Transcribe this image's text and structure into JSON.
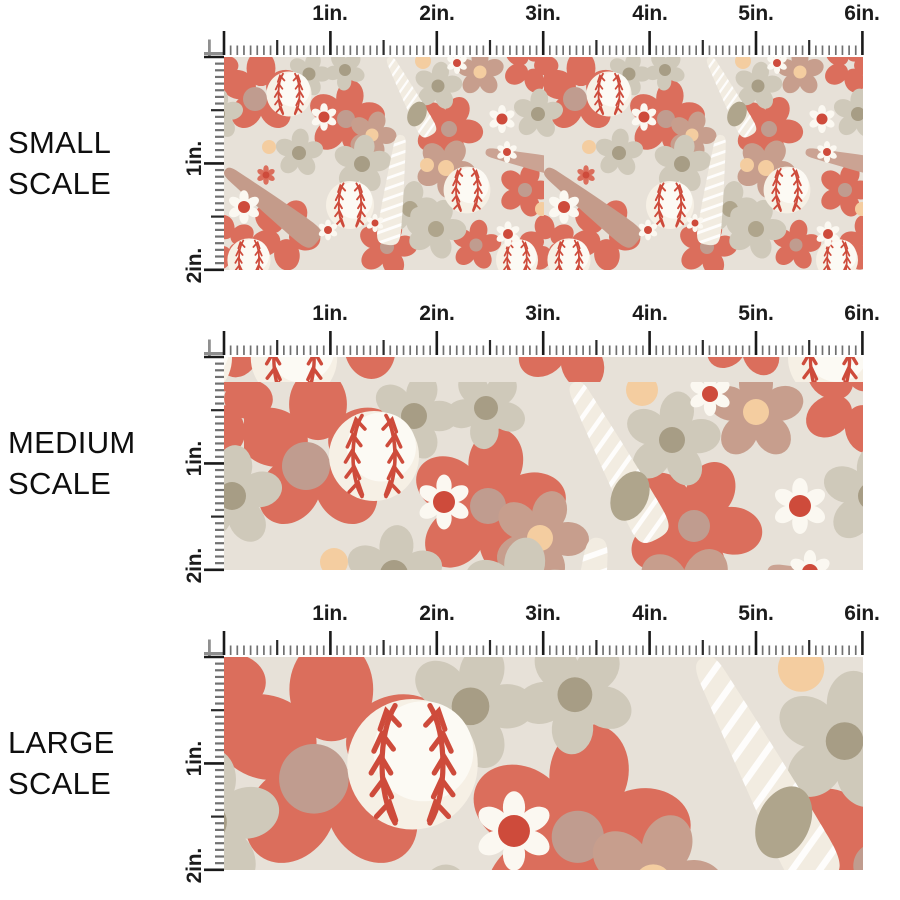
{
  "image_type": "fabric pattern scale comparison",
  "rows": [
    {
      "name": "small-scale",
      "label_line1": "SMALL",
      "label_line2": "SCALE"
    },
    {
      "name": "medium-scale",
      "label_line1": "MEDIUM",
      "label_line2": "SCALE"
    },
    {
      "name": "large-scale",
      "label_line1": "LARGE",
      "label_line2": "SCALE"
    }
  ],
  "ruler": {
    "horizontal_labels": [
      "1in.",
      "2in.",
      "3in.",
      "4in.",
      "5in.",
      "6in."
    ],
    "vertical_labels": [
      "1in.",
      "2in."
    ],
    "unit": "in.",
    "divisions_per_inch": 16
  },
  "pattern": {
    "description": "cream fabric with coral and beige florals, baseballs and baseball bats",
    "colors": {
      "fabric_background": "#E7E1D8",
      "coral": "#DB6E5C",
      "stitch_red": "#CE4B3B",
      "tan": "#C79E8D",
      "tan_center": "#C09C8F",
      "beige": "#CFC9BA",
      "beige_center": "#A79D85",
      "olive": "#AFA58C",
      "white": "#FBF8F1",
      "peach": "#F4CDA0",
      "cream_bat": "#F2ECE1",
      "bat_tan": "#C49B8A"
    }
  },
  "page": {
    "background": "#FFFFFF",
    "text_color": "#0E0E0E"
  }
}
